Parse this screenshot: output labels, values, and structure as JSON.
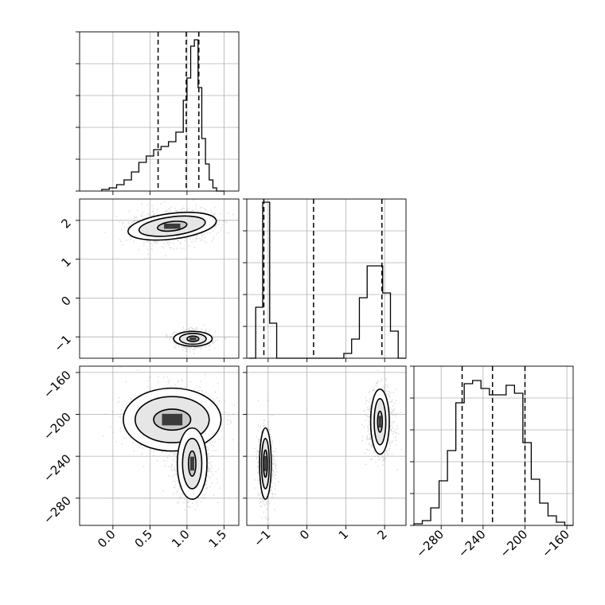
{
  "chart_data": {
    "type": "corner",
    "parameters": [
      {
        "range": [
          -0.45,
          1.7
        ],
        "ticks": [
          0.0,
          0.5,
          1.0,
          1.5
        ],
        "tick_labels": [
          "0.0",
          "0.5",
          "1.0",
          "1.5"
        ]
      },
      {
        "range": [
          -1.55,
          2.55
        ],
        "ticks": [
          -1,
          0,
          1,
          2
        ],
        "tick_labels": [
          "−1",
          "0",
          "1",
          "2"
        ]
      },
      {
        "range": [
          -306,
          -154
        ],
        "ticks": [
          -280,
          -240,
          -200,
          -160
        ],
        "tick_labels": [
          "−280",
          "−240",
          "−200",
          "−160"
        ]
      }
    ],
    "diagonal": [
      {
        "edges": [
          -0.15,
          -0.05,
          0.05,
          0.15,
          0.25,
          0.35,
          0.45,
          0.55,
          0.65,
          0.75,
          0.85,
          0.95,
          1.0,
          1.05,
          1.1,
          1.15,
          1.2,
          1.25,
          1.3,
          1.35,
          1.4,
          1.5
        ],
        "counts": [
          0.01,
          0.02,
          0.04,
          0.07,
          0.12,
          0.18,
          0.22,
          0.26,
          0.28,
          0.31,
          0.37,
          0.57,
          0.71,
          0.91,
          0.95,
          0.65,
          0.33,
          0.17,
          0.07,
          0.02,
          0.0
        ],
        "quantiles": [
          0.61,
          0.99,
          1.16
        ]
      },
      {
        "edges": [
          -1.5,
          -1.32,
          -1.14,
          -0.96,
          -0.78,
          -0.6,
          0.75,
          0.95,
          1.15,
          1.35,
          1.55,
          1.75,
          1.95,
          2.15,
          2.35,
          2.55
        ],
        "counts": [
          0.0,
          0.32,
          0.98,
          0.22,
          0.0,
          0.0,
          0.0,
          0.03,
          0.12,
          0.38,
          0.58,
          0.58,
          0.41,
          0.17,
          0.0
        ],
        "quantiles": [
          -1.11,
          0.17,
          1.93
        ]
      },
      {
        "edges": [
          -306,
          -298,
          -290,
          -282,
          -274,
          -266,
          -258,
          -250,
          -242,
          -234,
          -226,
          -218,
          -210,
          -202,
          -194,
          -186,
          -178,
          -170,
          -162,
          -154
        ],
        "counts": [
          0.01,
          0.03,
          0.11,
          0.28,
          0.47,
          0.77,
          0.89,
          0.91,
          0.86,
          0.82,
          0.82,
          0.88,
          0.83,
          0.52,
          0.29,
          0.14,
          0.06,
          0.02,
          0.0
        ],
        "quantiles": [
          -260,
          -231,
          -200
        ]
      }
    ],
    "scatter": [
      {
        "x": 0,
        "y": 1,
        "modes": [
          {
            "center": [
              0.8,
              1.85
            ],
            "spread": [
              0.28,
              0.22
            ],
            "tilt": 0.16,
            "levels": [
              [
                0.2,
                0.12
              ],
              [
                0.45,
                0.24
              ],
              [
                0.6,
                0.33
              ]
            ]
          },
          {
            "center": [
              1.08,
              -1.05
            ],
            "spread": [
              0.12,
              0.11
            ],
            "tilt": 0.0,
            "levels": [
              [
                0.08,
                0.07
              ],
              [
                0.18,
                0.14
              ],
              [
                0.26,
                0.19
              ]
            ]
          }
        ]
      },
      {
        "x": 0,
        "y": 2,
        "modes": [
          {
            "center": [
              0.8,
              -205
            ],
            "spread": [
              0.3,
              16
            ],
            "tilt": 0.0,
            "levels": [
              [
                0.25,
                10
              ],
              [
                0.5,
                22
              ],
              [
                0.66,
                30
              ]
            ]
          },
          {
            "center": [
              1.07,
              -247
            ],
            "spread": [
              0.12,
              17
            ],
            "tilt": 0.0,
            "levels": [
              [
                0.05,
                12
              ],
              [
                0.13,
                24
              ],
              [
                0.2,
                34
              ]
            ]
          }
        ]
      },
      {
        "x": 1,
        "y": 2,
        "modes": [
          {
            "center": [
              -1.07,
              -247
            ],
            "spread": [
              0.1,
              17
            ],
            "tilt": 0.0,
            "levels": [
              [
                0.05,
                13
              ],
              [
                0.1,
                24
              ],
              [
                0.15,
                34
              ]
            ]
          },
          {
            "center": [
              1.88,
              -207
            ],
            "spread": [
              0.17,
              15
            ],
            "tilt": 0.0,
            "levels": [
              [
                0.06,
                10
              ],
              [
                0.15,
                22
              ],
              [
                0.24,
                31
              ]
            ]
          }
        ]
      }
    ]
  }
}
